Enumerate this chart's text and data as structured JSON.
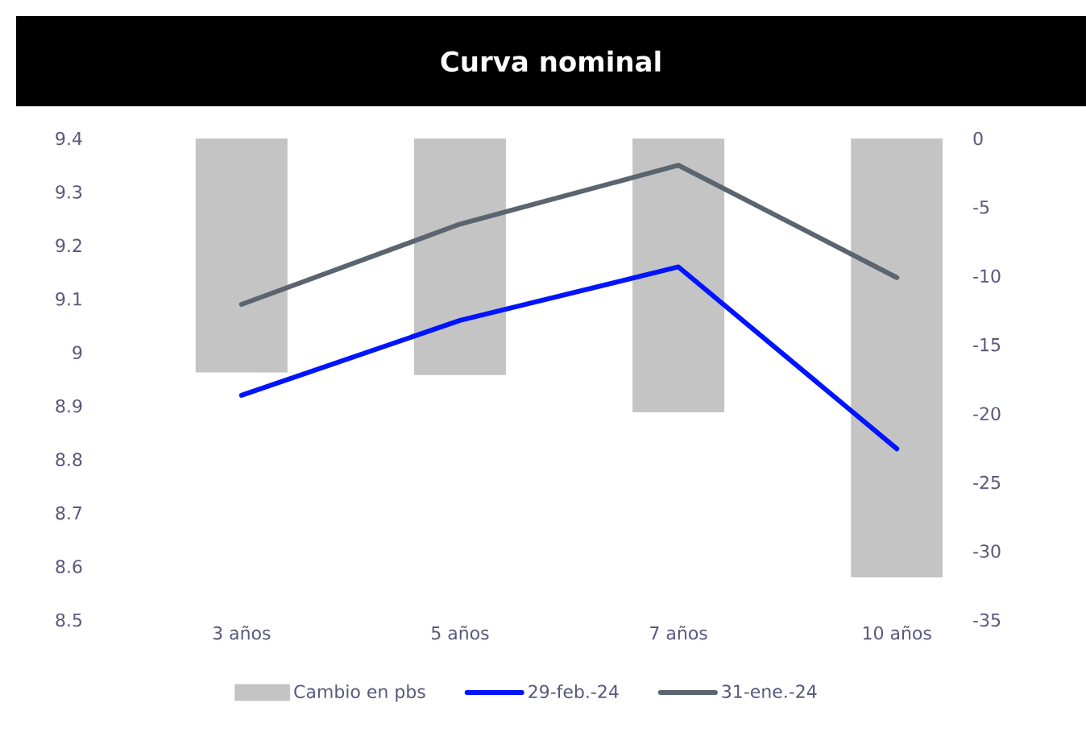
{
  "chart_data": {
    "type": "line",
    "title": "Curva nominal",
    "categories": [
      "3 años",
      "5 años",
      "7 años",
      "10 años"
    ],
    "series": [
      {
        "name": "Cambio en pbs",
        "type": "bar",
        "axis": "y2",
        "color": "#c4c4c4",
        "values": [
          -17,
          -17.2,
          -19.9,
          -31.9
        ]
      },
      {
        "name": "29-feb.-24",
        "color": "#0014ff",
        "values": [
          8.92,
          9.06,
          9.16,
          8.82
        ]
      },
      {
        "name": "31-ene.-24",
        "color": "#5a6570",
        "values": [
          9.09,
          9.24,
          9.35,
          9.14
        ]
      }
    ],
    "ylim": [
      8.5,
      9.4
    ],
    "yticks": [
      8.5,
      8.6,
      8.7,
      8.8,
      8.9,
      9,
      9.1,
      9.2,
      9.3,
      9.4
    ],
    "y2lim": [
      -35,
      0
    ],
    "y2ticks": [
      -35,
      -30,
      -25,
      -20,
      -15,
      -10,
      -5,
      0
    ],
    "legend": "bottom",
    "grid": false,
    "marker": "none",
    "line_style": "solid"
  }
}
